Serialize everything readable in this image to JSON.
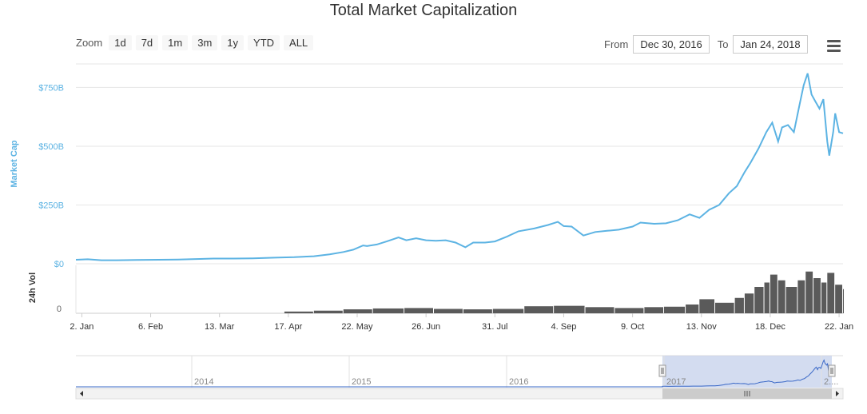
{
  "header": {
    "title": "Total Market Capitalization",
    "zoom_label": "Zoom",
    "zoom_buttons": [
      "1d",
      "7d",
      "1m",
      "3m",
      "1y",
      "YTD",
      "ALL"
    ],
    "from_label": "From",
    "from_value": "Dec 30, 2016",
    "to_label": "To",
    "to_value": "Jan 24, 2018"
  },
  "colors": {
    "line": "#5cb3e3",
    "volume": "#5a5a5a",
    "navigator_fill": "#c8d3ec",
    "axis_text": "#666666",
    "y_label": "#5cb3e3"
  },
  "icons": {
    "menu": "hamburger-menu-icon"
  },
  "chart_data": {
    "type": "line",
    "title": "Total Market Capitalization",
    "ylabel": "Market Cap",
    "ylim": [
      0,
      850
    ],
    "unit": "B",
    "y_ticks": [
      "$0",
      "$250B",
      "$500B",
      "$750B"
    ],
    "y_tick_values": [
      0,
      250,
      500,
      750
    ],
    "x_tick_labels": [
      "2. Jan",
      "6. Feb",
      "13. Mar",
      "17. Apr",
      "22. May",
      "26. Jun",
      "31. Jul",
      "4. Sep",
      "9. Oct",
      "13. Nov",
      "18. Dec",
      "22. Jan"
    ],
    "x_tick_dates": [
      "2017-01-02",
      "2017-02-06",
      "2017-03-13",
      "2017-04-17",
      "2017-05-22",
      "2017-06-26",
      "2017-07-31",
      "2017-09-04",
      "2017-10-09",
      "2017-11-13",
      "2017-12-18",
      "2018-01-22"
    ],
    "x_range": [
      "2016-12-30",
      "2018-01-24"
    ],
    "series": [
      {
        "values": [
          [
            "2016-12-30",
            17
          ],
          [
            "2017-01-05",
            19
          ],
          [
            "2017-01-12",
            15
          ],
          [
            "2017-01-20",
            15
          ],
          [
            "2017-01-30",
            16
          ],
          [
            "2017-02-10",
            17
          ],
          [
            "2017-02-20",
            18
          ],
          [
            "2017-03-01",
            20
          ],
          [
            "2017-03-10",
            22
          ],
          [
            "2017-03-20",
            22
          ],
          [
            "2017-03-30",
            23
          ],
          [
            "2017-04-10",
            26
          ],
          [
            "2017-04-20",
            28
          ],
          [
            "2017-04-30",
            32
          ],
          [
            "2017-05-08",
            40
          ],
          [
            "2017-05-15",
            50
          ],
          [
            "2017-05-20",
            60
          ],
          [
            "2017-05-25",
            78
          ],
          [
            "2017-05-27",
            75
          ],
          [
            "2017-06-01",
            82
          ],
          [
            "2017-06-06",
            95
          ],
          [
            "2017-06-12",
            112
          ],
          [
            "2017-06-16",
            100
          ],
          [
            "2017-06-21",
            108
          ],
          [
            "2017-06-26",
            100
          ],
          [
            "2017-07-01",
            98
          ],
          [
            "2017-07-06",
            100
          ],
          [
            "2017-07-11",
            90
          ],
          [
            "2017-07-16",
            70
          ],
          [
            "2017-07-20",
            90
          ],
          [
            "2017-07-26",
            90
          ],
          [
            "2017-07-31",
            95
          ],
          [
            "2017-08-06",
            115
          ],
          [
            "2017-08-12",
            138
          ],
          [
            "2017-08-20",
            150
          ],
          [
            "2017-08-27",
            165
          ],
          [
            "2017-09-01",
            178
          ],
          [
            "2017-09-04",
            160
          ],
          [
            "2017-09-08",
            158
          ],
          [
            "2017-09-14",
            120
          ],
          [
            "2017-09-20",
            135
          ],
          [
            "2017-09-26",
            140
          ],
          [
            "2017-10-02",
            145
          ],
          [
            "2017-10-09",
            158
          ],
          [
            "2017-10-13",
            175
          ],
          [
            "2017-10-20",
            170
          ],
          [
            "2017-10-26",
            172
          ],
          [
            "2017-11-01",
            185
          ],
          [
            "2017-11-07",
            210
          ],
          [
            "2017-11-12",
            195
          ],
          [
            "2017-11-17",
            230
          ],
          [
            "2017-11-22",
            250
          ],
          [
            "2017-11-27",
            300
          ],
          [
            "2017-12-01",
            330
          ],
          [
            "2017-12-05",
            390
          ],
          [
            "2017-12-08",
            430
          ],
          [
            "2017-12-12",
            490
          ],
          [
            "2017-12-16",
            560
          ],
          [
            "2017-12-19",
            600
          ],
          [
            "2017-12-22",
            520
          ],
          [
            "2017-12-24",
            580
          ],
          [
            "2017-12-27",
            590
          ],
          [
            "2017-12-30",
            560
          ],
          [
            "2018-01-02",
            680
          ],
          [
            "2018-01-04",
            760
          ],
          [
            "2018-01-06",
            810
          ],
          [
            "2018-01-08",
            720
          ],
          [
            "2018-01-10",
            690
          ],
          [
            "2018-01-12",
            660
          ],
          [
            "2018-01-14",
            700
          ],
          [
            "2018-01-16",
            520
          ],
          [
            "2018-01-17",
            460
          ],
          [
            "2018-01-19",
            560
          ],
          [
            "2018-01-20",
            640
          ],
          [
            "2018-01-22",
            560
          ],
          [
            "2018-01-24",
            555
          ]
        ]
      }
    ],
    "volume": {
      "label": "24h Vol",
      "y_tick": "0",
      "max": 100,
      "values": [
        [
          "2017-04-15",
          4
        ],
        [
          "2017-04-30",
          6
        ],
        [
          "2017-05-15",
          9
        ],
        [
          "2017-05-30",
          11
        ],
        [
          "2017-06-15",
          12
        ],
        [
          "2017-06-30",
          10
        ],
        [
          "2017-07-15",
          9
        ],
        [
          "2017-07-30",
          10
        ],
        [
          "2017-08-15",
          16
        ],
        [
          "2017-08-30",
          17
        ],
        [
          "2017-09-15",
          14
        ],
        [
          "2017-09-30",
          12
        ],
        [
          "2017-10-15",
          14
        ],
        [
          "2017-10-25",
          15
        ],
        [
          "2017-11-05",
          20
        ],
        [
          "2017-11-12",
          32
        ],
        [
          "2017-11-20",
          24
        ],
        [
          "2017-11-30",
          35
        ],
        [
          "2017-12-05",
          45
        ],
        [
          "2017-12-10",
          60
        ],
        [
          "2017-12-15",
          70
        ],
        [
          "2017-12-18",
          88
        ],
        [
          "2017-12-22",
          75
        ],
        [
          "2017-12-26",
          60
        ],
        [
          "2018-01-01",
          75
        ],
        [
          "2018-01-05",
          95
        ],
        [
          "2018-01-09",
          80
        ],
        [
          "2018-01-13",
          70
        ],
        [
          "2018-01-16",
          92
        ],
        [
          "2018-01-20",
          65
        ],
        [
          "2018-01-24",
          55
        ]
      ]
    },
    "navigator": {
      "year_labels": [
        "2014",
        "2015",
        "2016",
        "2017",
        "2...."
      ],
      "selected_range": [
        "2016-12-30",
        "2018-01-24"
      ]
    }
  }
}
